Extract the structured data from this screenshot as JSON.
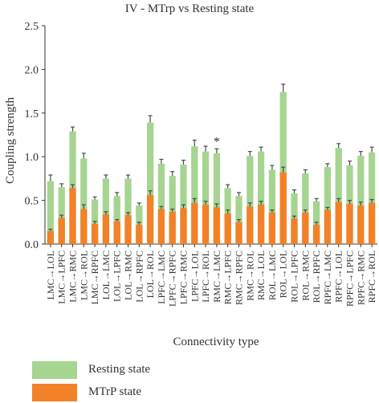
{
  "chart_data": {
    "type": "bar",
    "stacked": true,
    "title": "IV - MTrp vs Resting state",
    "xlabel": "Connectivity type",
    "ylabel": "Coupling strength",
    "ylim": [
      0,
      2.5
    ],
    "yticks": [
      "0.0",
      "0.5",
      "1.0",
      "1.5",
      "2.0",
      "2.5"
    ],
    "grid": false,
    "legend_position": "bottom-left",
    "categories": [
      "LMC→LOL",
      "LMC→LPFC",
      "LMC→RMC",
      "LMC→ROL",
      "LMC→RPFC",
      "LOL→LMC",
      "LOL→LPFC",
      "LOL→RMC",
      "LOL→RPFC",
      "LOL→ROL",
      "LPFC→LMC",
      "LPFC→RPFC",
      "LPFC→RMC",
      "LPFC→LOL",
      "LPFC→ROL",
      "RMC→LMC",
      "RMC→LPFC",
      "RMC→RPFC",
      "RMC→ROL",
      "RMC→LOL",
      "ROL→LMC",
      "ROL→LOL",
      "ROL→LPFC",
      "ROL→RMC",
      "ROL→RPFC",
      "RPFC→LMC",
      "RPFC→LOL",
      "RPFC→LPFC",
      "RPFC→RMC",
      "RPFC→ROL"
    ],
    "series": [
      {
        "name": "MTrP state",
        "color": "#f28127",
        "values": [
          0.15,
          0.3,
          0.64,
          0.4,
          0.23,
          0.34,
          0.26,
          0.33,
          0.22,
          0.56,
          0.4,
          0.37,
          0.41,
          0.47,
          0.45,
          0.42,
          0.35,
          0.25,
          0.43,
          0.45,
          0.36,
          0.82,
          0.29,
          0.36,
          0.22,
          0.39,
          0.48,
          0.46,
          0.44,
          0.47
        ],
        "errors": [
          0.02,
          0.03,
          0.04,
          0.05,
          0.03,
          0.03,
          0.02,
          0.03,
          0.03,
          0.05,
          0.03,
          0.03,
          0.04,
          0.05,
          0.04,
          0.04,
          0.04,
          0.03,
          0.04,
          0.04,
          0.03,
          0.06,
          0.03,
          0.03,
          0.03,
          0.03,
          0.04,
          0.04,
          0.04,
          0.04
        ]
      },
      {
        "name": "Resting state",
        "color": "#a6d591",
        "values": [
          0.72,
          0.65,
          1.29,
          0.98,
          0.51,
          0.75,
          0.55,
          0.75,
          0.44,
          1.39,
          0.92,
          0.78,
          0.91,
          1.12,
          1.06,
          1.04,
          0.64,
          0.55,
          1.01,
          1.06,
          0.85,
          1.74,
          0.58,
          0.81,
          0.49,
          0.88,
          1.1,
          0.9,
          1.01,
          1.05
        ],
        "errors": [
          0.07,
          0.04,
          0.05,
          0.06,
          0.03,
          0.04,
          0.04,
          0.04,
          0.03,
          0.08,
          0.05,
          0.05,
          0.05,
          0.07,
          0.06,
          0.05,
          0.04,
          0.04,
          0.05,
          0.05,
          0.05,
          0.09,
          0.04,
          0.04,
          0.03,
          0.04,
          0.05,
          0.05,
          0.05,
          0.06
        ]
      }
    ],
    "annotations": [
      {
        "category": "RMC→LMC",
        "text": "*"
      }
    ]
  }
}
